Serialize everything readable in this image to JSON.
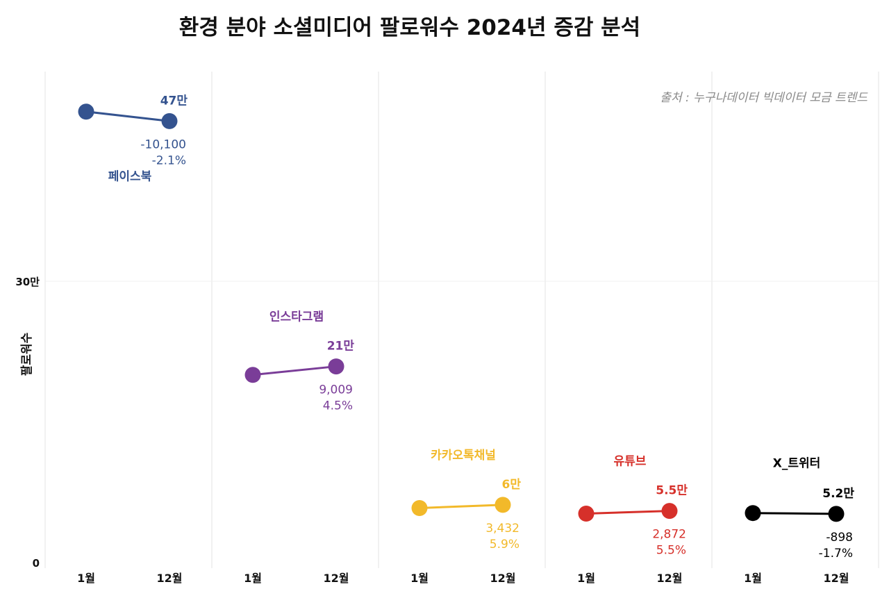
{
  "chart_data": {
    "type": "dumbbell",
    "title": "환경 분야 소셜미디어 팔로워수 2024년 증감 분석",
    "source": "출처 : 누구나데이터 빅데이터 모금 트렌드",
    "ylabel": "팔로워수",
    "ylim": [
      0,
      30000000
    ],
    "yticks": [
      {
        "value": 0,
        "label": "0"
      },
      {
        "value": 300000,
        "label": "30만"
      }
    ],
    "x_categories": [
      "1월",
      "12월"
    ],
    "grid": true,
    "series": [
      {
        "name": "페이스북",
        "color": "#34538f",
        "jan": 480950,
        "dec": 470850,
        "value_label": "47만",
        "change": "-10,100",
        "change_pct": "-2.1%"
      },
      {
        "name": "인스타그램",
        "color": "#7a3d98",
        "jan": 200200,
        "dec": 209209,
        "value_label": "21만",
        "change": "9,009",
        "change_pct": "4.5%"
      },
      {
        "name": "카카오톡채널",
        "color": "#f2b92a",
        "jan": 58170,
        "dec": 61602,
        "value_label": "6만",
        "change": "3,432",
        "change_pct": "5.9%"
      },
      {
        "name": "유튜브",
        "color": "#d6302a",
        "jan": 52218,
        "dec": 55090,
        "value_label": "5.5만",
        "change": "2,872",
        "change_pct": "5.5%"
      },
      {
        "name": "X_트위터",
        "color": "#000000",
        "jan": 52824,
        "dec": 51926,
        "value_label": "5.2만",
        "change": "-898",
        "change_pct": "-1.7%"
      }
    ]
  }
}
